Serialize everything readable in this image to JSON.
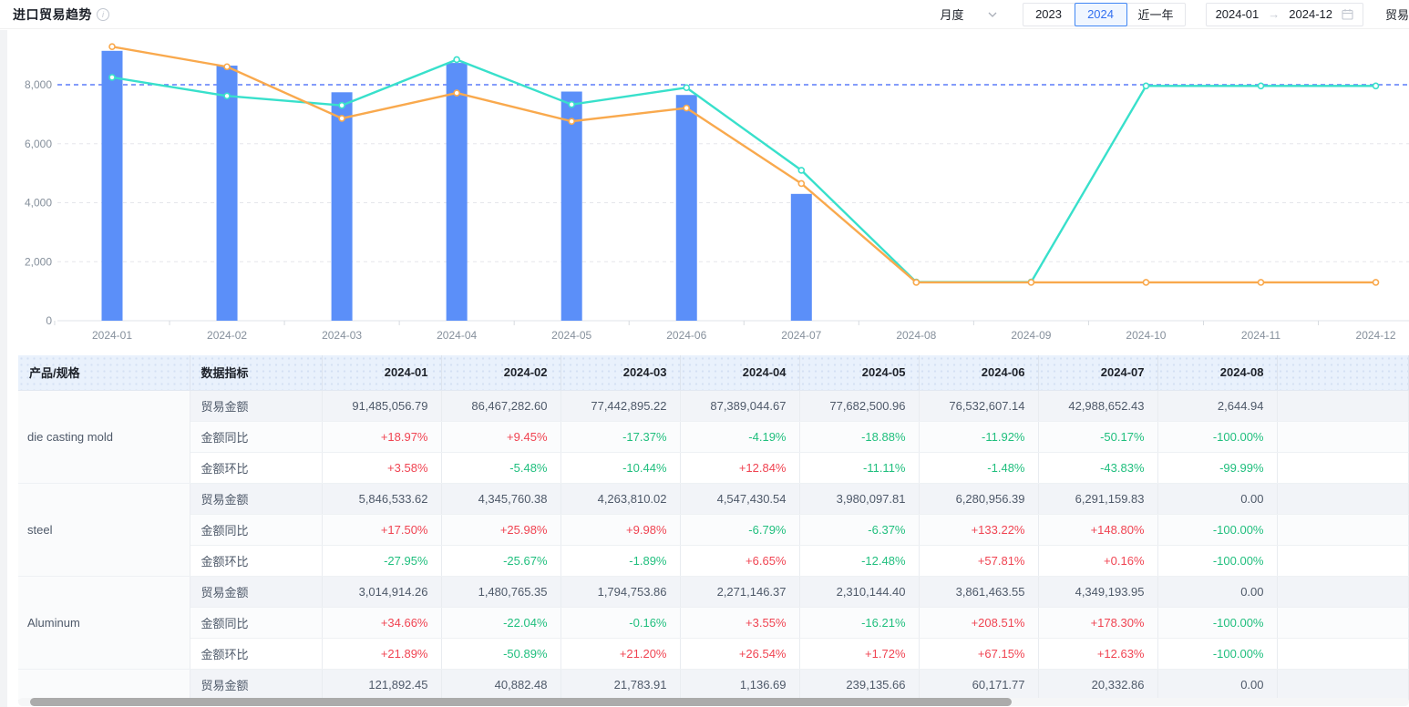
{
  "header": {
    "title": "进口贸易趋势",
    "granularity": "月度",
    "segments": [
      "2023",
      "2024",
      "近一年"
    ],
    "selected_segment": "2024",
    "date_start": "2024-01",
    "date_arrow": "→",
    "date_end": "2024-12",
    "trailing_clipped_label": "贸易"
  },
  "colors": {
    "bar": "#5b8ff9",
    "line_teal": "#38e0cb",
    "line_orange": "#f9a94d",
    "highlight_line": "#5b7cf9",
    "grid": "#e5e6eb",
    "axis_text": "#86909c",
    "positive_red": "#f04452",
    "negative_green": "#20bf7e",
    "accent_blue": "#3370f0"
  },
  "chart_data": {
    "type": "bar",
    "title": "",
    "xlabel": "",
    "ylabel": "",
    "categories": [
      "2024-01",
      "2024-02",
      "2024-03",
      "2024-04",
      "2024-05",
      "2024-06",
      "2024-07",
      "2024-08",
      "2024-09",
      "2024-10",
      "2024-11",
      "2024-12"
    ],
    "series": [
      {
        "name": "trade-amount-bar",
        "type": "bar",
        "color": "#5b8ff9",
        "values": [
          9149,
          8647,
          7744,
          8739,
          7768,
          7653,
          4299,
          0.26,
          0,
          0,
          0,
          0
        ]
      },
      {
        "name": "line-teal",
        "type": "line",
        "color": "#38e0cb",
        "values": [
          8250,
          7620,
          7300,
          8850,
          7330,
          7900,
          5100,
          1310,
          1310,
          7960,
          7960,
          7960
        ]
      },
      {
        "name": "line-orange",
        "type": "line",
        "color": "#f9a94d",
        "values": [
          9290,
          8610,
          6860,
          7720,
          6760,
          7210,
          4650,
          1300,
          1300,
          1300,
          1300,
          1300
        ]
      }
    ],
    "ylim": [
      0,
      9600
    ],
    "yticks": [
      0,
      2000,
      4000,
      6000,
      8000
    ],
    "ytick_labels": [
      "0",
      "2,000",
      "4,000",
      "6,000",
      "8,000"
    ],
    "highlight_gridline_value": 8000,
    "grid": true,
    "legend_position": "none"
  },
  "table": {
    "col_product_header": "产品/规格",
    "col_metric_header": "数据指标",
    "month_headers": [
      "2024-01",
      "2024-02",
      "2024-03",
      "2024-04",
      "2024-05",
      "2024-06",
      "2024-07",
      "2024-08"
    ],
    "products": [
      {
        "name": "die casting mold",
        "rows": [
          {
            "label": "贸易金额",
            "kind": "amount",
            "values": [
              "91,485,056.79",
              "86,467,282.60",
              "77,442,895.22",
              "87,389,044.67",
              "77,682,500.96",
              "76,532,607.14",
              "42,988,652.43",
              "2,644.94"
            ]
          },
          {
            "label": "金额同比",
            "kind": "yoy",
            "values": [
              "+18.97%",
              "+9.45%",
              "-17.37%",
              "-4.19%",
              "-18.88%",
              "-11.92%",
              "-50.17%",
              "-100.00%"
            ]
          },
          {
            "label": "金额环比",
            "kind": "mom",
            "values": [
              "+3.58%",
              "-5.48%",
              "-10.44%",
              "+12.84%",
              "-11.11%",
              "-1.48%",
              "-43.83%",
              "-99.99%"
            ]
          }
        ]
      },
      {
        "name": "steel",
        "rows": [
          {
            "label": "贸易金额",
            "kind": "amount",
            "values": [
              "5,846,533.62",
              "4,345,760.38",
              "4,263,810.02",
              "4,547,430.54",
              "3,980,097.81",
              "6,280,956.39",
              "6,291,159.83",
              "0.00"
            ]
          },
          {
            "label": "金额同比",
            "kind": "yoy",
            "values": [
              "+17.50%",
              "+25.98%",
              "+9.98%",
              "-6.79%",
              "-6.37%",
              "+133.22%",
              "+148.80%",
              "-100.00%"
            ]
          },
          {
            "label": "金额环比",
            "kind": "mom",
            "values": [
              "-27.95%",
              "-25.67%",
              "-1.89%",
              "+6.65%",
              "-12.48%",
              "+57.81%",
              "+0.16%",
              "-100.00%"
            ]
          }
        ]
      },
      {
        "name": "Aluminum",
        "rows": [
          {
            "label": "贸易金额",
            "kind": "amount",
            "values": [
              "3,014,914.26",
              "1,480,765.35",
              "1,794,753.86",
              "2,271,146.37",
              "2,310,144.40",
              "3,861,463.55",
              "4,349,193.95",
              "0.00"
            ]
          },
          {
            "label": "金额同比",
            "kind": "yoy",
            "values": [
              "+34.66%",
              "-22.04%",
              "-0.16%",
              "+3.55%",
              "-16.21%",
              "+208.51%",
              "+178.30%",
              "-100.00%"
            ]
          },
          {
            "label": "金额环比",
            "kind": "mom",
            "values": [
              "+21.89%",
              "-50.89%",
              "+21.20%",
              "+26.54%",
              "+1.72%",
              "+67.15%",
              "+12.63%",
              "-100.00%"
            ]
          }
        ]
      },
      {
        "name": "",
        "rows": [
          {
            "label": "贸易金额",
            "kind": "amount",
            "values": [
              "121,892.45",
              "40,882.48",
              "21,783.91",
              "1,136.69",
              "239,135.66",
              "60,171.77",
              "20,332.86",
              "0.00"
            ]
          }
        ]
      }
    ]
  }
}
